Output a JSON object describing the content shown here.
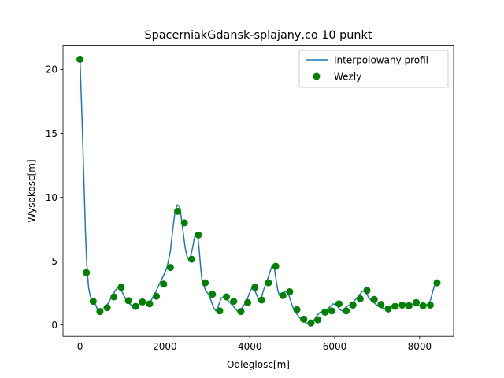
{
  "chart_data": {
    "type": "line",
    "title": "SpacerniakGdansk-splajany,co 10 punkt",
    "xlabel": "Odleglosc[m]",
    "ylabel": "Wysokosc[m]",
    "xlim": [
      -400,
      8800
    ],
    "ylim": [
      -0.9,
      21.9
    ],
    "xticks": [
      0,
      2000,
      4000,
      6000,
      8000
    ],
    "yticks": [
      0,
      5,
      10,
      15,
      20
    ],
    "grid": false,
    "legend_position": "top-right",
    "series": [
      {
        "name": "Interpolowany profil",
        "kind": "line",
        "color": "#1f77b4",
        "x": [
          0,
          50,
          100,
          130,
          160,
          200,
          240,
          270,
          300,
          330,
          380,
          420,
          460,
          520,
          600,
          680,
          750,
          830,
          900,
          970,
          1050,
          1130,
          1220,
          1300,
          1380,
          1460,
          1530,
          1600,
          1660,
          1720,
          1800,
          1870,
          1960,
          2050,
          2130,
          2190,
          2240,
          2290,
          2330,
          2360,
          2400,
          2440,
          2480,
          2520,
          2560,
          2600,
          2650,
          2700,
          2740,
          2780,
          2810,
          2840,
          2870,
          2910,
          2960,
          3030,
          3100,
          3150,
          3200,
          3240,
          3280,
          3330,
          3380,
          3450,
          3520,
          3600,
          3680,
          3720,
          3780,
          3850,
          3920,
          3980,
          4050,
          4120,
          4180,
          4230,
          4270,
          4330,
          4400,
          4460,
          4520,
          4580,
          4620,
          4660,
          4700,
          4760,
          4830,
          4900,
          4950,
          5000,
          5050,
          5120,
          5180,
          5230,
          5280,
          5330,
          5400,
          5460,
          5530,
          5600,
          5660,
          5720,
          5800,
          5880,
          5960,
          6050,
          6120,
          6180,
          6240,
          6320,
          6400,
          6480,
          6570,
          6650,
          6730,
          6790,
          6850,
          6920,
          6990,
          7060,
          7140,
          7220,
          7280,
          7330,
          7380,
          7460,
          7540,
          7620,
          7700,
          7780,
          7850,
          7920,
          8000,
          8080,
          8150,
          8220,
          8260,
          8300,
          8350,
          8400
        ],
        "y": [
          20.8,
          16.0,
          10.5,
          7.2,
          4.8,
          3.0,
          2.3,
          2.0,
          1.85,
          1.85,
          1.5,
          1.1,
          1.05,
          1.2,
          1.35,
          1.8,
          2.2,
          2.7,
          2.95,
          2.75,
          2.2,
          1.8,
          1.5,
          1.4,
          1.6,
          1.85,
          1.75,
          1.65,
          1.8,
          2.2,
          2.7,
          3.2,
          3.8,
          4.5,
          5.8,
          7.6,
          8.9,
          9.4,
          9.3,
          9.1,
          8.0,
          7.0,
          6.0,
          5.4,
          5.15,
          5.3,
          6.0,
          6.9,
          7.1,
          6.8,
          5.8,
          4.6,
          3.6,
          3.1,
          2.7,
          2.4,
          1.8,
          1.3,
          1.1,
          1.3,
          1.7,
          2.1,
          2.2,
          2.0,
          1.8,
          1.5,
          1.2,
          1.05,
          1.15,
          1.5,
          1.8,
          2.4,
          2.9,
          2.7,
          2.2,
          1.95,
          2.1,
          2.8,
          3.4,
          4.0,
          4.6,
          4.4,
          3.5,
          2.7,
          2.3,
          2.4,
          2.6,
          2.55,
          2.0,
          1.5,
          1.1,
          0.8,
          0.55,
          0.4,
          0.25,
          0.15,
          0.1,
          0.2,
          0.45,
          0.8,
          1.0,
          1.05,
          1.15,
          1.4,
          1.65,
          1.55,
          1.2,
          1.1,
          1.3,
          1.5,
          1.7,
          1.95,
          2.3,
          2.65,
          2.6,
          2.2,
          1.95,
          1.75,
          1.55,
          1.4,
          1.3,
          1.25,
          1.3,
          1.4,
          1.5,
          1.55,
          1.55,
          1.55,
          1.55,
          1.6,
          1.65,
          1.6,
          1.5,
          1.5,
          1.55,
          1.65,
          2.0,
          2.5,
          3.1,
          3.3
        ]
      },
      {
        "name": "Wezly",
        "kind": "scatter",
        "color": "#008000",
        "x": [
          0,
          150,
          310,
          470,
          640,
          800,
          970,
          1140,
          1310,
          1470,
          1640,
          1800,
          1970,
          2130,
          2300,
          2460,
          2630,
          2790,
          2950,
          3120,
          3290,
          3450,
          3620,
          3790,
          3950,
          4120,
          4280,
          4440,
          4610,
          4780,
          4940,
          5110,
          5270,
          5440,
          5600,
          5770,
          5930,
          6100,
          6270,
          6430,
          6600,
          6760,
          6930,
          7090,
          7260,
          7420,
          7590,
          7750,
          7920,
          8080,
          8250,
          8410
        ],
        "y": [
          20.8,
          4.1,
          1.85,
          1.05,
          1.35,
          2.2,
          2.95,
          1.9,
          1.45,
          1.8,
          1.65,
          2.25,
          3.2,
          4.5,
          8.9,
          8.0,
          5.15,
          7.05,
          3.3,
          2.4,
          1.1,
          2.2,
          1.85,
          1.05,
          1.75,
          2.95,
          1.95,
          3.3,
          4.6,
          2.3,
          2.6,
          1.2,
          0.45,
          0.15,
          0.4,
          1.0,
          1.1,
          1.65,
          1.1,
          1.55,
          2.05,
          2.7,
          2.0,
          1.6,
          1.25,
          1.45,
          1.55,
          1.5,
          1.75,
          1.5,
          1.55,
          3.3
        ]
      }
    ]
  }
}
